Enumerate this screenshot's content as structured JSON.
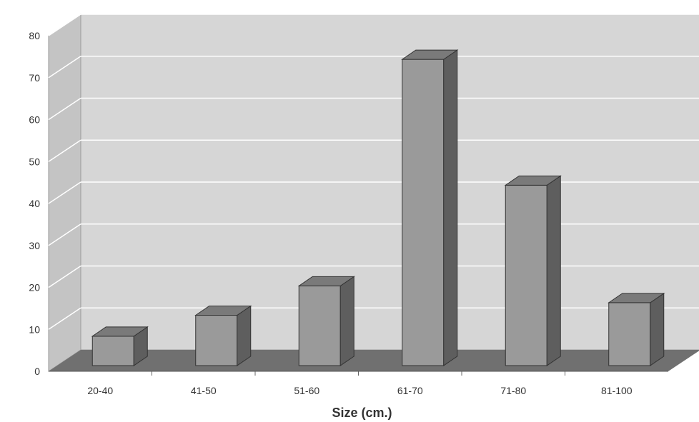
{
  "chart_data": {
    "type": "bar",
    "categories": [
      "20-40",
      "41-50",
      "51-60",
      "61-70",
      "71-80",
      "81-100"
    ],
    "values": [
      7,
      12,
      19,
      73,
      43,
      15
    ],
    "title": "",
    "xlabel": "Size (cm.)",
    "ylabel": "",
    "ylim": [
      0,
      80
    ],
    "yticks": [
      0,
      10,
      20,
      30,
      40,
      50,
      60,
      70,
      80
    ],
    "grid": true,
    "style": "3d",
    "legend": "none"
  },
  "colors": {
    "wall": "#d6d6d6",
    "side_wall": "#c4c4c4",
    "floor": "#707070",
    "gridline": "#ffffff",
    "bar_front": "#9a9a9a",
    "bar_top": "#7a7a7a",
    "bar_side": "#5e5e5e",
    "axis_text": "#333333"
  }
}
